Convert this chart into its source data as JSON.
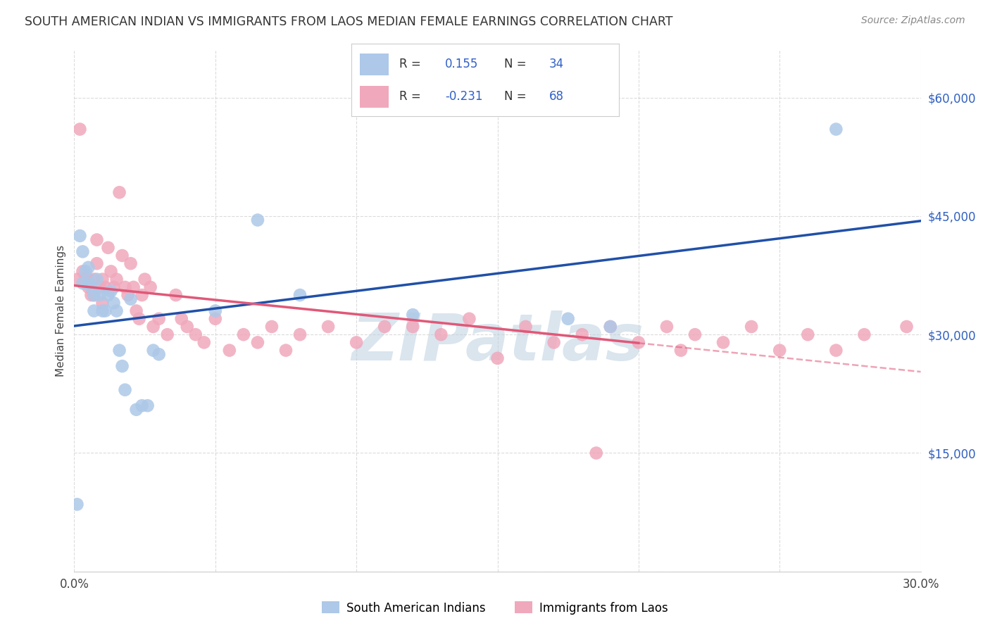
{
  "title": "SOUTH AMERICAN INDIAN VS IMMIGRANTS FROM LAOS MEDIAN FEMALE EARNINGS CORRELATION CHART",
  "source": "Source: ZipAtlas.com",
  "ylabel": "Median Female Earnings",
  "y_ticks": [
    0,
    15000,
    30000,
    45000,
    60000
  ],
  "y_tick_labels": [
    "",
    "$15,000",
    "$30,000",
    "$45,000",
    "$60,000"
  ],
  "xmin": 0.0,
  "xmax": 0.3,
  "ymin": 0,
  "ymax": 66000,
  "blue_fill": "#adc8e8",
  "blue_line": "#2050a8",
  "pink_fill": "#f0a8bc",
  "pink_line": "#e05878",
  "bg": "#ffffff",
  "grid_color": "#cccccc",
  "watermark_color": "#bdd0e0",
  "legend_label1": "South American Indians",
  "legend_label2": "Immigrants from Laos",
  "blue_x": [
    0.001,
    0.002,
    0.003,
    0.003,
    0.004,
    0.005,
    0.005,
    0.006,
    0.007,
    0.007,
    0.008,
    0.009,
    0.01,
    0.011,
    0.012,
    0.013,
    0.014,
    0.015,
    0.016,
    0.017,
    0.018,
    0.02,
    0.022,
    0.024,
    0.026,
    0.028,
    0.03,
    0.05,
    0.065,
    0.08,
    0.12,
    0.175,
    0.19,
    0.27
  ],
  "blue_y": [
    8500,
    42500,
    40500,
    36500,
    38000,
    38500,
    36500,
    36000,
    35000,
    33000,
    37000,
    35000,
    33000,
    33000,
    35000,
    35500,
    34000,
    33000,
    28000,
    26000,
    23000,
    34500,
    20500,
    21000,
    21000,
    28000,
    27500,
    33000,
    44500,
    35000,
    32500,
    32000,
    31000,
    56000
  ],
  "pink_x": [
    0.001,
    0.002,
    0.003,
    0.004,
    0.005,
    0.005,
    0.006,
    0.007,
    0.007,
    0.008,
    0.008,
    0.009,
    0.01,
    0.01,
    0.011,
    0.012,
    0.013,
    0.014,
    0.015,
    0.016,
    0.017,
    0.018,
    0.019,
    0.02,
    0.021,
    0.022,
    0.023,
    0.024,
    0.025,
    0.027,
    0.028,
    0.03,
    0.033,
    0.036,
    0.038,
    0.04,
    0.043,
    0.046,
    0.05,
    0.055,
    0.06,
    0.065,
    0.07,
    0.075,
    0.08,
    0.09,
    0.1,
    0.11,
    0.12,
    0.13,
    0.14,
    0.15,
    0.16,
    0.17,
    0.18,
    0.185,
    0.19,
    0.2,
    0.21,
    0.215,
    0.22,
    0.23,
    0.24,
    0.25,
    0.26,
    0.27,
    0.28,
    0.295
  ],
  "pink_y": [
    37000,
    56000,
    38000,
    37000,
    37000,
    36000,
    35000,
    37000,
    35000,
    42000,
    39000,
    36000,
    37000,
    34000,
    36000,
    41000,
    38000,
    36000,
    37000,
    48000,
    40000,
    36000,
    35000,
    39000,
    36000,
    33000,
    32000,
    35000,
    37000,
    36000,
    31000,
    32000,
    30000,
    35000,
    32000,
    31000,
    30000,
    29000,
    32000,
    28000,
    30000,
    29000,
    31000,
    28000,
    30000,
    31000,
    29000,
    31000,
    31000,
    30000,
    32000,
    27000,
    31000,
    29000,
    30000,
    15000,
    31000,
    29000,
    31000,
    28000,
    30000,
    29000,
    31000,
    28000,
    30000,
    28000,
    30000,
    31000
  ]
}
